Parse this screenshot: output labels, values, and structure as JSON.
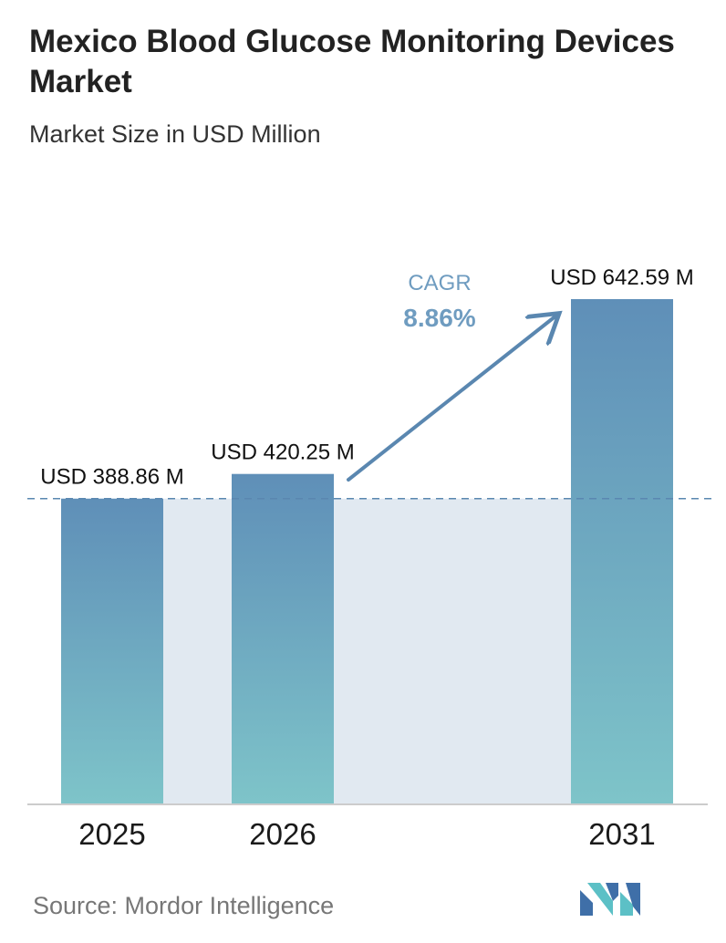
{
  "title": "Mexico Blood Glucose Monitoring Devices Market",
  "subtitle": "Market Size in USD Million",
  "source": "Source: Mordor Intelligence",
  "colors": {
    "bar_top": "#5f8fb8",
    "bar_bottom": "#7ec4c9",
    "band": "#e1e9f1",
    "arrow": "#5a87b0",
    "cagr_label": "#6f9cc0",
    "axis": "#cccccc"
  },
  "logo_icon": "mordor-intelligence-logo",
  "chart_data": {
    "type": "bar",
    "categories": [
      "2025",
      "2026",
      "2031"
    ],
    "values": [
      388.86,
      420.25,
      642.59
    ],
    "data_labels": [
      "USD 388.86 M",
      "USD 420.25 M",
      "USD 642.59 M"
    ],
    "annotation": {
      "label": "CAGR",
      "value": "8.86%"
    },
    "baseline_reference": 388.86,
    "ylim": [
      0,
      642.59
    ],
    "grid": false,
    "legend": "none"
  }
}
